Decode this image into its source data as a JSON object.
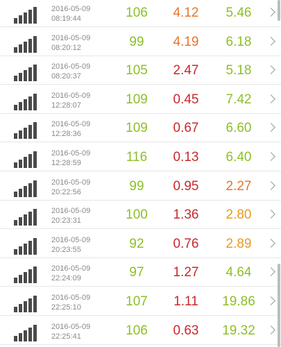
{
  "colors": {
    "green": "#8cbf26",
    "red": "#c8282d",
    "orange": "#e8742c",
    "amber": "#e89a1f"
  },
  "icons": {
    "signal": "signal-strength-icon",
    "chevron": "chevron-right-icon"
  },
  "rows": [
    {
      "date": "2016-05-09",
      "time": "08:19:44",
      "ping": "106",
      "download": "4.12",
      "upload": "5.46",
      "download_color": "orange",
      "upload_color": "green"
    },
    {
      "date": "2016-05-09",
      "time": "08:20:12",
      "ping": "99",
      "download": "4.19",
      "upload": "6.18",
      "download_color": "orange",
      "upload_color": "green"
    },
    {
      "date": "2016-05-09",
      "time": "08:20:37",
      "ping": "105",
      "download": "2.47",
      "upload": "5.18",
      "download_color": "red",
      "upload_color": "green"
    },
    {
      "date": "2016-05-09",
      "time": "12:28:07",
      "ping": "109",
      "download": "0.45",
      "upload": "7.42",
      "download_color": "red",
      "upload_color": "green"
    },
    {
      "date": "2016-05-09",
      "time": "12:28:36",
      "ping": "109",
      "download": "0.67",
      "upload": "6.60",
      "download_color": "red",
      "upload_color": "green"
    },
    {
      "date": "2016-05-09",
      "time": "12:28:59",
      "ping": "116",
      "download": "0.13",
      "upload": "6.40",
      "download_color": "red",
      "upload_color": "green"
    },
    {
      "date": "2016-05-09",
      "time": "20:22:56",
      "ping": "99",
      "download": "0.95",
      "upload": "2.27",
      "download_color": "red",
      "upload_color": "orange"
    },
    {
      "date": "2016-05-09",
      "time": "20:23:31",
      "ping": "100",
      "download": "1.36",
      "upload": "2.80",
      "download_color": "red",
      "upload_color": "amber"
    },
    {
      "date": "2016-05-09",
      "time": "20:23:55",
      "ping": "92",
      "download": "0.76",
      "upload": "2.89",
      "download_color": "red",
      "upload_color": "amber"
    },
    {
      "date": "2016-05-09",
      "time": "22:24:09",
      "ping": "97",
      "download": "1.27",
      "upload": "4.64",
      "download_color": "red",
      "upload_color": "green"
    },
    {
      "date": "2016-05-09",
      "time": "22:25:10",
      "ping": "107",
      "download": "1.11",
      "upload": "19.86",
      "download_color": "red",
      "upload_color": "green"
    },
    {
      "date": "2016-05-09",
      "time": "22:25:41",
      "ping": "106",
      "download": "0.63",
      "upload": "19.32",
      "download_color": "red",
      "upload_color": "green"
    }
  ]
}
